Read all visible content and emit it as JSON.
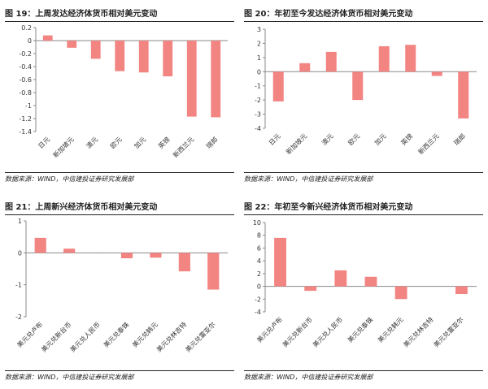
{
  "chart_data": [
    {
      "type": "bar",
      "title": "图 19：上周发达经济体货币相对美元变动",
      "categories": [
        "日元",
        "新加坡元",
        "澳元",
        "欧元",
        "加元",
        "英镑",
        "新西兰元",
        "瑞郎"
      ],
      "values": [
        0.08,
        -0.11,
        -0.28,
        -0.47,
        -0.49,
        -0.55,
        -1.17,
        -1.18
      ],
      "ylim": [
        -1.4,
        0.2
      ],
      "yticks": [
        0.2,
        0,
        -0.2,
        -0.4,
        -0.6,
        -0.8,
        -1,
        -1.2,
        -1.4
      ],
      "grid": false,
      "source": "数据来源：WIND，中信建投证券研究发展部"
    },
    {
      "type": "bar",
      "title": "图 20：年初至今发达经济体货币相对美元变动",
      "categories": [
        "日元",
        "新加坡元",
        "澳元",
        "欧元",
        "加元",
        "英镑",
        "新西兰元",
        "瑞郎"
      ],
      "values": [
        -2.1,
        0.6,
        1.4,
        -2.0,
        1.8,
        1.9,
        -0.3,
        -3.3
      ],
      "ylim": [
        -4,
        3
      ],
      "yticks": [
        3,
        2,
        1,
        0,
        -1,
        -2,
        -3,
        -4
      ],
      "grid": false,
      "source": "数据来源：WIND，中信建投证券研究发展部"
    },
    {
      "type": "bar",
      "title": "图 21：上周新兴经济体货币相对美元变动",
      "categories": [
        "美元兑卢布",
        "美元兑新台币",
        "美元兑人民币",
        "美元兑泰铢",
        "美元兑韩元",
        "美元兑林吉特",
        "美元兑雷亚尔"
      ],
      "values": [
        0.47,
        0.13,
        0.0,
        -0.17,
        -0.15,
        -0.58,
        -1.15
      ],
      "ylim": [
        -2,
        1
      ],
      "yticks": [
        1,
        0,
        -1,
        -2
      ],
      "grid": false,
      "source": "数据来源：WIND，中信建投证券研究发展部"
    },
    {
      "type": "bar",
      "title": "图 22：年初至今新兴经济体货币相对美元变动",
      "categories": [
        "美元兑卢布",
        "美元兑新台币",
        "美元兑人民币",
        "美元兑泰铢",
        "美元兑韩元",
        "美元兑林吉特",
        "美元兑雷亚尔"
      ],
      "values": [
        7.6,
        -0.7,
        2.5,
        1.5,
        -2.0,
        0.0,
        -1.2
      ],
      "ylim": [
        -4,
        10
      ],
      "yticks": [
        10,
        8,
        6,
        4,
        2,
        0,
        -2,
        -4
      ],
      "grid": false,
      "source": "数据来源：WIND，中信建投证券研究发展部"
    }
  ],
  "colors": {
    "bar": "#f28482",
    "axis": "#888888",
    "text": "#333333"
  }
}
